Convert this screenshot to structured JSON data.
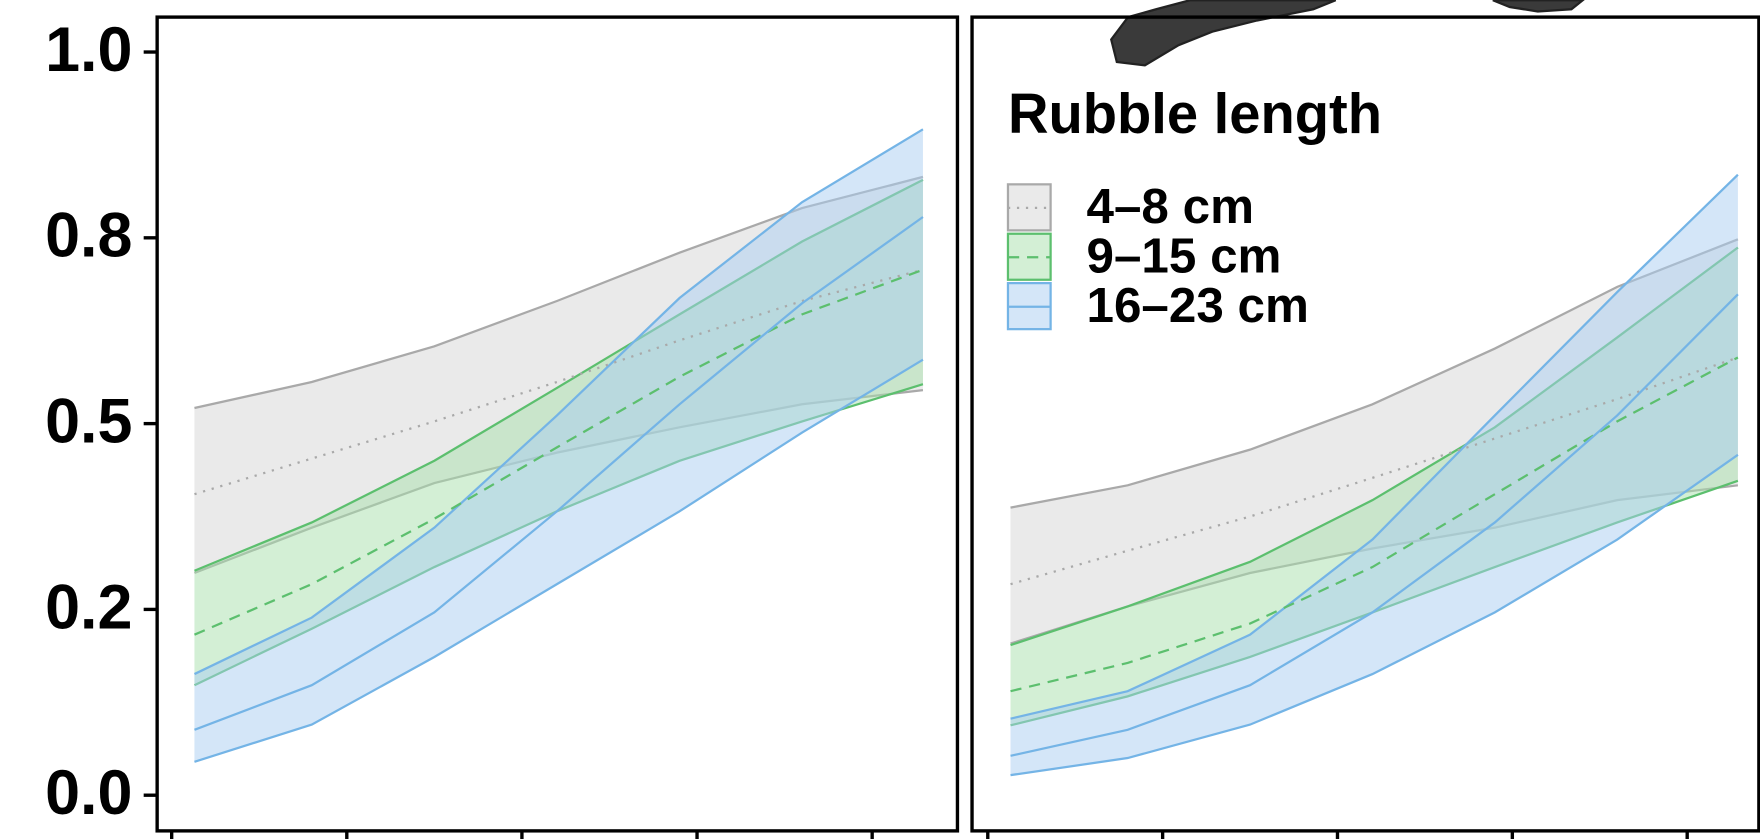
{
  "chart_data": [
    {
      "type": "line",
      "x": [
        0.13,
        0.8,
        1.5,
        2.2,
        2.9,
        3.6,
        4.29
      ],
      "xlim": [
        -0.083,
        4.487
      ],
      "xticks": [
        0,
        1,
        2,
        3,
        4
      ],
      "ylim": [
        -0.048,
        1.047
      ],
      "yticks": [
        {
          "value": 0,
          "label": "0.0"
        },
        {
          "value": 0.25,
          "label": "0.2"
        },
        0.5,
        {
          "value": 0.75,
          "label": "0.8"
        },
        {
          "value": 1,
          "label": "1.0"
        }
      ],
      "series": [
        {
          "color": "#a9a9a9",
          "fill": "#d6d6d6",
          "linestyle": "dotted",
          "values": [
            0.405,
            0.453,
            0.503,
            0.556,
            0.612,
            0.665,
            0.707
          ],
          "lower": [
            0.299,
            0.36,
            0.42,
            0.461,
            0.495,
            0.526,
            0.545
          ],
          "upper": [
            0.521,
            0.556,
            0.604,
            0.665,
            0.73,
            0.79,
            0.832
          ]
        },
        {
          "color": "#5cbf6e",
          "fill": "#a8e0ac",
          "linestyle": "dashed",
          "values": [
            0.216,
            0.284,
            0.372,
            0.468,
            0.563,
            0.647,
            0.707
          ],
          "lower": [
            0.148,
            0.224,
            0.307,
            0.382,
            0.45,
            0.503,
            0.553
          ],
          "upper": [
            0.302,
            0.367,
            0.45,
            0.548,
            0.647,
            0.745,
            0.828
          ]
        },
        {
          "color": "#74b4e6",
          "fill": "#aacdf2",
          "linestyle": "solid",
          "values": [
            0.088,
            0.148,
            0.246,
            0.382,
            0.526,
            0.662,
            0.778
          ],
          "lower": [
            0.045,
            0.095,
            0.186,
            0.284,
            0.382,
            0.488,
            0.586
          ],
          "upper": [
            0.163,
            0.239,
            0.36,
            0.511,
            0.669,
            0.798,
            0.896
          ]
        }
      ]
    },
    {
      "type": "line",
      "x": [
        0.13,
        0.8,
        1.5,
        2.2,
        2.9,
        3.6,
        4.29
      ],
      "xlim": [
        -0.09,
        4.41
      ],
      "xticks": [
        0,
        1,
        2,
        3,
        4
      ],
      "ylim": [
        -0.048,
        1.047
      ],
      "legend_title": "Rubble length",
      "legend": "top-left",
      "series": [
        {
          "name": "4–8 cm",
          "color": "#a9a9a9",
          "fill": "#d6d6d6",
          "linestyle": "dotted",
          "values": [
            0.284,
            0.329,
            0.375,
            0.427,
            0.48,
            0.533,
            0.589
          ],
          "lower": [
            0.204,
            0.254,
            0.299,
            0.332,
            0.36,
            0.397,
            0.417
          ],
          "upper": [
            0.387,
            0.417,
            0.465,
            0.526,
            0.601,
            0.684,
            0.748
          ]
        },
        {
          "name": "9–15 cm",
          "color": "#5cbf6e",
          "fill": "#a8e0ac",
          "linestyle": "dashed",
          "values": [
            0.14,
            0.178,
            0.231,
            0.307,
            0.405,
            0.503,
            0.589
          ],
          "lower": [
            0.094,
            0.133,
            0.186,
            0.246,
            0.307,
            0.367,
            0.423
          ],
          "upper": [
            0.202,
            0.254,
            0.314,
            0.397,
            0.495,
            0.616,
            0.737
          ]
        },
        {
          "name": "16–23 cm",
          "color": "#74b4e6",
          "fill": "#aacdf2",
          "linestyle": "solid",
          "values": [
            0.053,
            0.088,
            0.148,
            0.246,
            0.367,
            0.511,
            0.674
          ],
          "lower": [
            0.027,
            0.05,
            0.095,
            0.163,
            0.246,
            0.344,
            0.458
          ],
          "upper": [
            0.103,
            0.14,
            0.216,
            0.344,
            0.511,
            0.677,
            0.835
          ]
        }
      ]
    }
  ]
}
